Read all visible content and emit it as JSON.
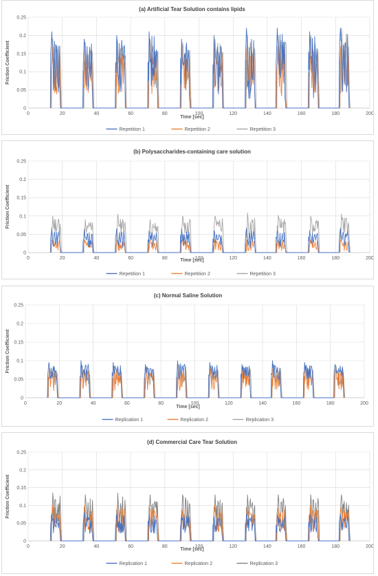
{
  "chart_data": [
    {
      "type": "line",
      "title": "(a) Artificial Tear Solution contains lipids",
      "xlabel": "Time [sec]",
      "ylabel": "Friction Coefficient",
      "xlim": [
        0,
        200
      ],
      "ylim": [
        0,
        0.25
      ],
      "xticks": [
        0,
        20,
        40,
        60,
        80,
        100,
        120,
        140,
        160,
        180,
        200
      ],
      "yticks": [
        0,
        0.05,
        0.1,
        0.15,
        0.2,
        0.25
      ],
      "grid": true,
      "legend": "bottom",
      "cycle_starts": [
        13,
        32,
        51,
        70,
        89,
        108,
        127,
        145,
        164,
        182
      ],
      "series": [
        {
          "name": "Repetition 1",
          "color": "#4472c4",
          "peaks": [
            0.21,
            0.19,
            0.2,
            0.21,
            0.19,
            0.2,
            0.22,
            0.22,
            0.21,
            0.22
          ],
          "base": 0.09
        },
        {
          "name": "Repetition 2",
          "color": "#ed7d31",
          "peaks": [
            0.17,
            0.16,
            0.16,
            0.17,
            0.16,
            0.17,
            0.17,
            0.17,
            0.17,
            0.17
          ],
          "base": 0.08
        },
        {
          "name": "Repetition 3",
          "color": "#a5a5a5",
          "peaks": [
            0.19,
            0.18,
            0.18,
            0.19,
            0.18,
            0.19,
            0.2,
            0.2,
            0.2,
            0.22
          ],
          "base": 0.1
        }
      ]
    },
    {
      "type": "line",
      "title": "(b) Polysaccharides-containing care solution",
      "xlabel": "Time [sec]",
      "ylabel": "Friction Coefficient",
      "xlim": [
        0,
        200
      ],
      "ylim": [
        0,
        0.25
      ],
      "xticks": [
        0,
        20,
        40,
        60,
        80,
        100,
        120,
        140,
        160,
        180,
        200
      ],
      "yticks": [
        0,
        0.05,
        0.1,
        0.15,
        0.2,
        0.25
      ],
      "grid": true,
      "legend": "bottom",
      "cycle_starts": [
        13,
        32,
        51,
        70,
        89,
        108,
        127,
        145,
        164,
        182
      ],
      "series": [
        {
          "name": "Repetition 1",
          "color": "#4472c4",
          "peaks": [
            0.065,
            0.06,
            0.065,
            0.06,
            0.065,
            0.06,
            0.065,
            0.06,
            0.06,
            0.065
          ],
          "base": 0.03
        },
        {
          "name": "Repetition 2",
          "color": "#ed7d31",
          "peaks": [
            0.035,
            0.035,
            0.035,
            0.035,
            0.035,
            0.035,
            0.035,
            0.035,
            0.035,
            0.035
          ],
          "base": 0.015
        },
        {
          "name": "Repetition 3",
          "color": "#a5a5a5",
          "peaks": [
            0.1,
            0.09,
            0.105,
            0.09,
            0.1,
            0.1,
            0.108,
            0.102,
            0.1,
            0.105
          ],
          "base": 0.06
        }
      ]
    },
    {
      "type": "line",
      "title": "(c) Normal Saline Solution",
      "xlabel": "Time [sec]",
      "ylabel": "Friction Coefficient",
      "xlim": [
        0,
        200
      ],
      "ylim": [
        0,
        0.25
      ],
      "xticks": [
        0,
        20,
        40,
        60,
        80,
        100,
        120,
        140,
        160,
        180,
        200
      ],
      "yticks": [
        0,
        0.05,
        0.1,
        0.15,
        0.2,
        0.25
      ],
      "grid": true,
      "legend": "bottom",
      "cycle_starts": [
        13,
        32,
        51,
        70,
        89,
        108,
        127,
        145,
        164,
        182
      ],
      "series": [
        {
          "name": "Replication 1",
          "color": "#4472c4",
          "peaks": [
            0.095,
            0.1,
            0.095,
            0.09,
            0.1,
            0.095,
            0.09,
            0.1,
            0.095,
            0.09
          ],
          "base": 0.065
        },
        {
          "name": "Replication 2",
          "color": "#ed7d31",
          "peaks": [
            0.08,
            0.08,
            0.08,
            0.08,
            0.08,
            0.08,
            0.08,
            0.08,
            0.08,
            0.08
          ],
          "base": 0.04
        },
        {
          "name": "Replication 3",
          "color": "#a5a5a5",
          "peaks": [
            0.08,
            0.08,
            0.085,
            0.085,
            0.09,
            0.085,
            0.085,
            0.09,
            0.085,
            0.085
          ],
          "base": 0.05
        }
      ]
    },
    {
      "type": "line",
      "title": "(d) Commercial Care Tear Solution",
      "xlabel": "Time [sec]",
      "ylabel": "Friction Coefficient",
      "xlim": [
        0,
        200
      ],
      "ylim": [
        0,
        0.25
      ],
      "xticks": [
        0,
        20,
        40,
        60,
        80,
        100,
        120,
        140,
        160,
        180,
        200
      ],
      "yticks": [
        0,
        0.05,
        0.1,
        0.15,
        0.2,
        0.25
      ],
      "grid": true,
      "legend": "bottom",
      "cycle_starts": [
        13,
        32,
        51,
        70,
        89,
        108,
        127,
        145,
        164,
        182
      ],
      "series": [
        {
          "name": "Replication 1",
          "color": "#4472c4",
          "peaks": [
            0.075,
            0.08,
            0.075,
            0.075,
            0.075,
            0.07,
            0.075,
            0.075,
            0.075,
            0.075
          ],
          "base": 0.04
        },
        {
          "name": "Replication 2",
          "color": "#ed7d31",
          "peaks": [
            0.1,
            0.1,
            0.1,
            0.095,
            0.09,
            0.1,
            0.095,
            0.095,
            0.1,
            0.095
          ],
          "base": 0.05
        },
        {
          "name": "Replication 3",
          "color": "#7f7f7f",
          "peaks": [
            0.135,
            0.13,
            0.135,
            0.13,
            0.13,
            0.13,
            0.13,
            0.13,
            0.13,
            0.13
          ],
          "base": 0.06
        }
      ]
    }
  ]
}
